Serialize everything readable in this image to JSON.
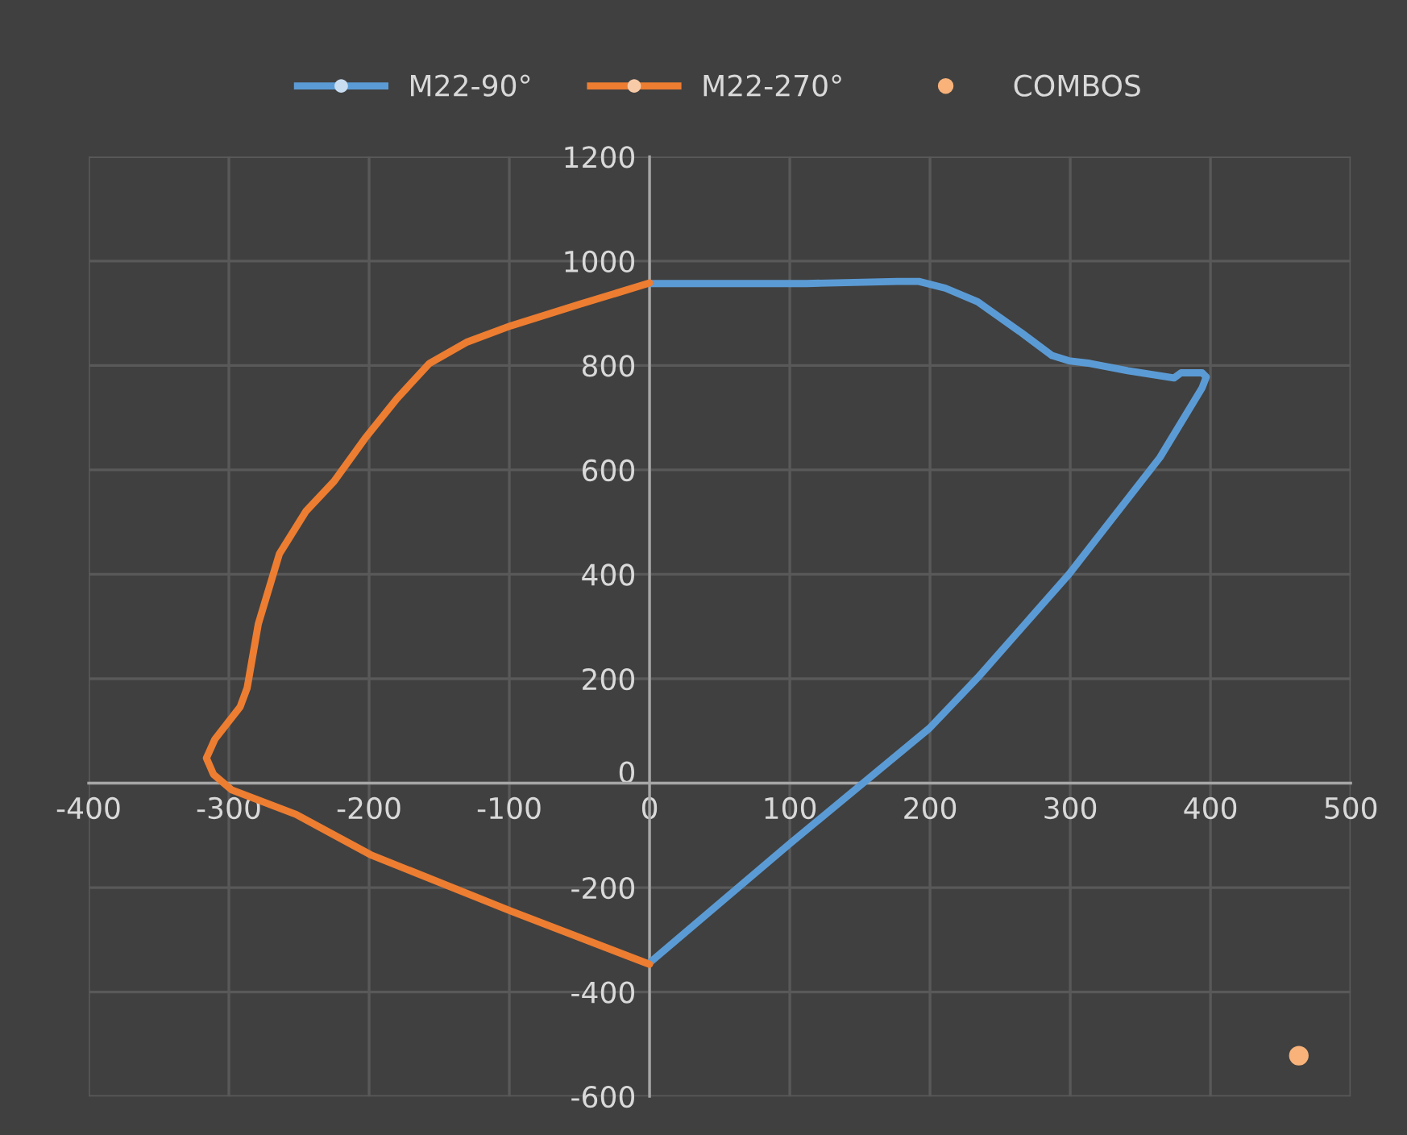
{
  "chart_data": {
    "type": "line",
    "xlim": [
      -400,
      500
    ],
    "ylim": [
      -600,
      1200
    ],
    "xticks": [
      -400,
      -300,
      -200,
      -100,
      0,
      100,
      200,
      300,
      400,
      500
    ],
    "yticks": [
      -600,
      -400,
      -200,
      0,
      200,
      400,
      600,
      800,
      1000,
      1200
    ],
    "grid": true,
    "legend": "top",
    "line_style": "solid",
    "series": [
      {
        "name": "M22-90°",
        "color": "#5b9bd5",
        "x": [
          0,
          100,
          199.5,
          234,
          299,
          364,
          394,
          397,
          394,
          379,
          374,
          341,
          314,
          299,
          287,
          264,
          234,
          211,
          192,
          177,
          112,
          0
        ],
        "values": [
          -344,
          -116,
          105,
          202,
          400,
          624,
          757,
          778,
          786,
          786,
          776,
          790,
          804,
          809,
          819,
          865,
          922,
          948,
          961,
          961,
          957,
          957
        ]
      },
      {
        "name": "M22-270°",
        "color": "#ed7d31",
        "x": [
          0,
          -99,
          -199,
          -252,
          -298,
          -311,
          -316,
          -310,
          -292,
          -287,
          -279,
          -264,
          -245,
          -225,
          -203,
          -180,
          -157,
          -130,
          -99,
          -50,
          0
        ],
        "values": [
          -347,
          -245,
          -137,
          -60,
          -13,
          17,
          48,
          84,
          146,
          182,
          305,
          439,
          521,
          578,
          660,
          737,
          804,
          845,
          876,
          917,
          958
        ]
      },
      {
        "name": "COMBOS",
        "color": "#f8b27a",
        "type": "scatter",
        "marker": "circle",
        "x": [
          463
        ],
        "values": [
          -522
        ]
      }
    ]
  }
}
